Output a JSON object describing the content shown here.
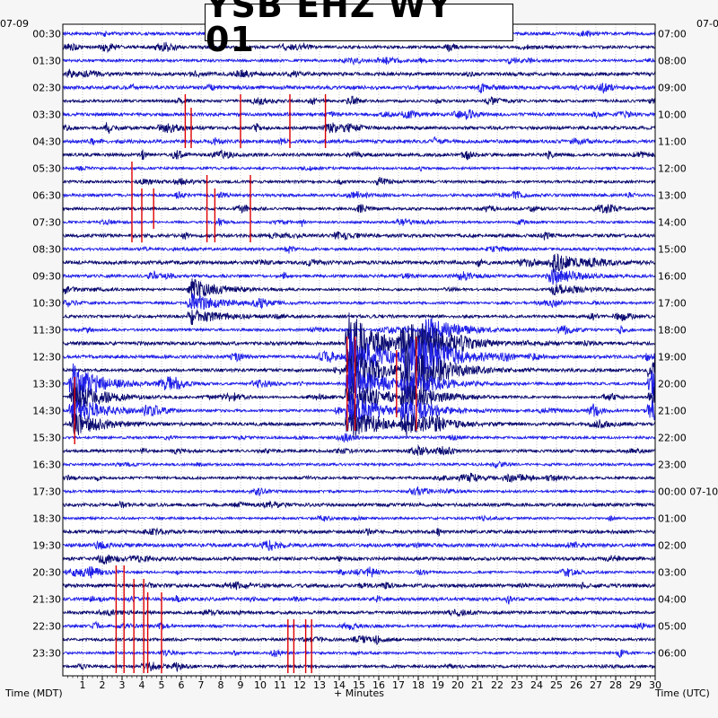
{
  "title": "YSB EHZ WY 01",
  "left_date": "07-09",
  "right_date": "07-0",
  "xlabel": "+ Minutes",
  "left_axis_label": "Time (MDT)",
  "right_axis_label": "Time (UTC)",
  "colors": {
    "trace_a": "#0c0c72",
    "trace_b": "#2020e8",
    "event": "#dd0000",
    "background": "#ffffff",
    "grid": "#9a9a9a"
  },
  "chart_data": {
    "type": "line",
    "description_kind": "helicorder",
    "x_range": [
      0,
      30
    ],
    "x_ticks": [
      "1",
      "2",
      "3",
      "4",
      "5",
      "6",
      "7",
      "8",
      "9",
      "10",
      "11",
      "12",
      "13",
      "14",
      "15",
      "16",
      "17",
      "18",
      "19",
      "20",
      "21",
      "22",
      "23",
      "24",
      "25",
      "26",
      "27",
      "28",
      "29",
      "30"
    ],
    "trace_count": 48,
    "trace_minutes": 30,
    "left_ticks": [
      "00:30",
      "01:30",
      "02:30",
      "03:30",
      "04:30",
      "05:30",
      "06:30",
      "07:30",
      "08:30",
      "09:30",
      "10:30",
      "11:30",
      "12:30",
      "13:30",
      "14:30",
      "15:30",
      "16:30",
      "17:30",
      "18:30",
      "19:30",
      "20:30",
      "21:30",
      "22:30",
      "23:30"
    ],
    "right_ticks": [
      "07:00",
      "08:00",
      "09:00",
      "10:00",
      "11:00",
      "12:00",
      "13:00",
      "14:00",
      "15:00",
      "16:00",
      "17:00",
      "18:00",
      "19:00",
      "20:00",
      "21:00",
      "22:00",
      "23:00",
      "00:00 07-10",
      "01:00",
      "02:00",
      "03:00",
      "04:00",
      "05:00",
      "06:00"
    ],
    "events": [
      {
        "minute": 14.5,
        "trace_start": 23,
        "trace_end": 29,
        "amplitude": 2.4,
        "clipped": true
      },
      {
        "minute": 17.3,
        "trace_start": 23,
        "trace_end": 29,
        "amplitude": 1.8,
        "clipped": true
      },
      {
        "minute": 18.2,
        "trace_start": 22,
        "trace_end": 25,
        "amplitude": 1.4,
        "clipped": false
      },
      {
        "minute": 0.5,
        "trace_start": 26,
        "trace_end": 29,
        "amplitude": 1.6,
        "clipped": true
      },
      {
        "minute": 29.8,
        "trace_start": 25,
        "trace_end": 28,
        "amplitude": 1.2,
        "clipped": false
      },
      {
        "minute": 6.5,
        "trace_start": 19,
        "trace_end": 21,
        "amplitude": 0.9,
        "clipped": false
      },
      {
        "minute": 24.8,
        "trace_start": 17,
        "trace_end": 19,
        "amplitude": 0.7,
        "clipped": false
      }
    ],
    "clipped_spikes": [
      {
        "minute": 6.2,
        "trace_start": 5,
        "trace_end": 8
      },
      {
        "minute": 6.5,
        "trace_start": 6,
        "trace_end": 8
      },
      {
        "minute": 9.0,
        "trace_start": 5,
        "trace_end": 8
      },
      {
        "minute": 11.5,
        "trace_start": 5,
        "trace_end": 8
      },
      {
        "minute": 13.3,
        "trace_start": 5,
        "trace_end": 8
      },
      {
        "minute": 3.5,
        "trace_start": 10,
        "trace_end": 15
      },
      {
        "minute": 4.0,
        "trace_start": 12,
        "trace_end": 15
      },
      {
        "minute": 4.6,
        "trace_start": 12,
        "trace_end": 14
      },
      {
        "minute": 7.3,
        "trace_start": 11,
        "trace_end": 15
      },
      {
        "minute": 7.7,
        "trace_start": 12,
        "trace_end": 15
      },
      {
        "minute": 9.5,
        "trace_start": 11,
        "trace_end": 15
      },
      {
        "minute": 2.7,
        "trace_start": 40,
        "trace_end": 47
      },
      {
        "minute": 3.1,
        "trace_start": 40,
        "trace_end": 47
      },
      {
        "minute": 3.6,
        "trace_start": 41,
        "trace_end": 47
      },
      {
        "minute": 4.1,
        "trace_start": 41,
        "trace_end": 47
      },
      {
        "minute": 4.3,
        "trace_start": 42,
        "trace_end": 47
      },
      {
        "minute": 5.0,
        "trace_start": 42,
        "trace_end": 47
      },
      {
        "minute": 11.4,
        "trace_start": 44,
        "trace_end": 47
      },
      {
        "minute": 11.7,
        "trace_start": 44,
        "trace_end": 47
      },
      {
        "minute": 12.3,
        "trace_start": 44,
        "trace_end": 47
      },
      {
        "minute": 12.6,
        "trace_start": 44,
        "trace_end": 47
      },
      {
        "minute": 14.4,
        "trace_start": 23,
        "trace_end": 29
      },
      {
        "minute": 14.8,
        "trace_start": 23,
        "trace_end": 29
      },
      {
        "minute": 16.9,
        "trace_start": 24,
        "trace_end": 28
      },
      {
        "minute": 17.9,
        "trace_start": 23,
        "trace_end": 29
      },
      {
        "minute": 0.6,
        "trace_start": 26,
        "trace_end": 30
      }
    ]
  }
}
